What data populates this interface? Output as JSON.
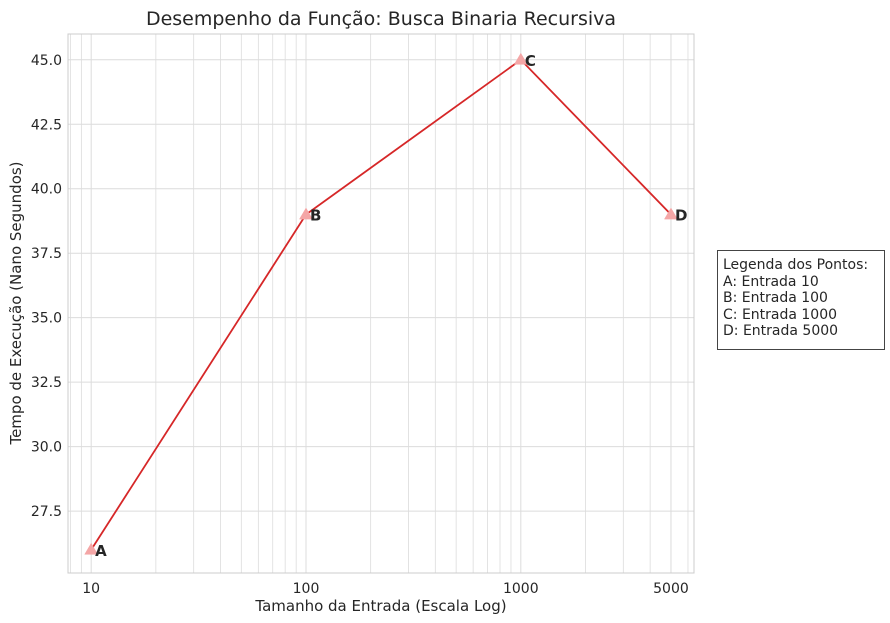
{
  "chart_data": {
    "type": "line",
    "title": "Desempenho da Função: Busca Binaria Recursiva",
    "xlabel": "Tamanho da Entrada (Escala Log)",
    "ylabel": "Tempo de Execução (Nano Segundos)",
    "xscale": "log",
    "xlim": [
      7.8,
      6400
    ],
    "ylim": [
      25.1,
      46.0
    ],
    "grid": true,
    "x_ticks": [
      10,
      100,
      1000,
      5000
    ],
    "x_tick_labels": [
      "10",
      "100",
      "1000",
      "5000"
    ],
    "y_ticks": [
      27.5,
      30.0,
      32.5,
      35.0,
      37.5,
      40.0,
      42.5,
      45.0
    ],
    "y_tick_labels": [
      "27.5",
      "30.0",
      "32.5",
      "35.0",
      "37.5",
      "40.0",
      "42.5",
      "45.0"
    ],
    "series": [
      {
        "x": [
          10,
          100,
          1000,
          5000
        ],
        "values": [
          26,
          39,
          45,
          39
        ],
        "point_labels": [
          "A",
          "B",
          "C",
          "D"
        ]
      }
    ],
    "legend": {
      "placement": "outside-right",
      "title": "Legenda dos Pontos:",
      "entries": [
        "A: Entrada 10",
        "B: Entrada 100",
        "C: Entrada 1000",
        "D: Entrada 5000"
      ]
    },
    "colors": {
      "line": "#d62728",
      "marker": "#f4a6a6",
      "grid": "#dcdcdc",
      "spine": "#cccccc"
    }
  }
}
